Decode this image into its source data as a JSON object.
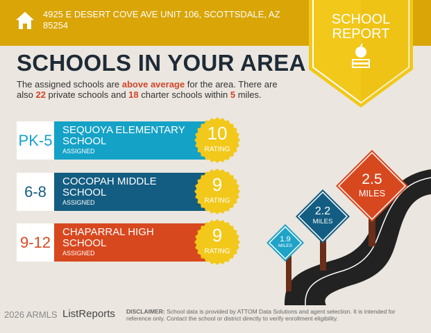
{
  "header": {
    "address": "4925 E DESERT COVE AVE UNIT 106, SCOTTSDALE, AZ 85254",
    "icon": "home-icon"
  },
  "badge": {
    "line1": "SCHOOL",
    "line2": "REPORT",
    "icon": "apple-books-icon"
  },
  "title": "SCHOOLS IN YOUR AREA",
  "summary": {
    "p1": "The assigned schools are ",
    "highlight": "above average",
    "p2": " for the area. There are also ",
    "private_count": "22",
    "p3": " private schools and ",
    "charter_count": "18",
    "p4": " charter schools within ",
    "miles": "5",
    "p5": " miles."
  },
  "schools": [
    {
      "grades": "PK-5",
      "name": "SEQUOYA ELEMENTARY SCHOOL",
      "status": "ASSIGNED",
      "rating": "10",
      "rating_label": "RATING",
      "color": "#15a2c7"
    },
    {
      "grades": "6-8",
      "name": "COCOPAH MIDDLE SCHOOL",
      "status": "ASSIGNED",
      "rating": "9",
      "rating_label": "RATING",
      "color": "#145d82"
    },
    {
      "grades": "9-12",
      "name": "CHAPARRAL HIGH SCHOOL",
      "status": "ASSIGNED",
      "rating": "9",
      "rating_label": "RATING",
      "color": "#d8481f"
    }
  ],
  "signs": [
    {
      "value": "1.9",
      "unit": "MILES",
      "color": "#1fa3c8"
    },
    {
      "value": "2.2",
      "unit": "MILES",
      "color": "#145d82"
    },
    {
      "value": "2.5",
      "unit": "MILES",
      "color": "#d8481f"
    }
  ],
  "footer": {
    "logo": "ListReports",
    "watermark": "2026 ARMLS",
    "disclaimer_label": "DISCLAIMER:",
    "disclaimer": " School data is provided by ATTOM Data Solutions and agent selection. It is intended for reference only. Contact the school or district directly to verify enrollment eligibility."
  }
}
